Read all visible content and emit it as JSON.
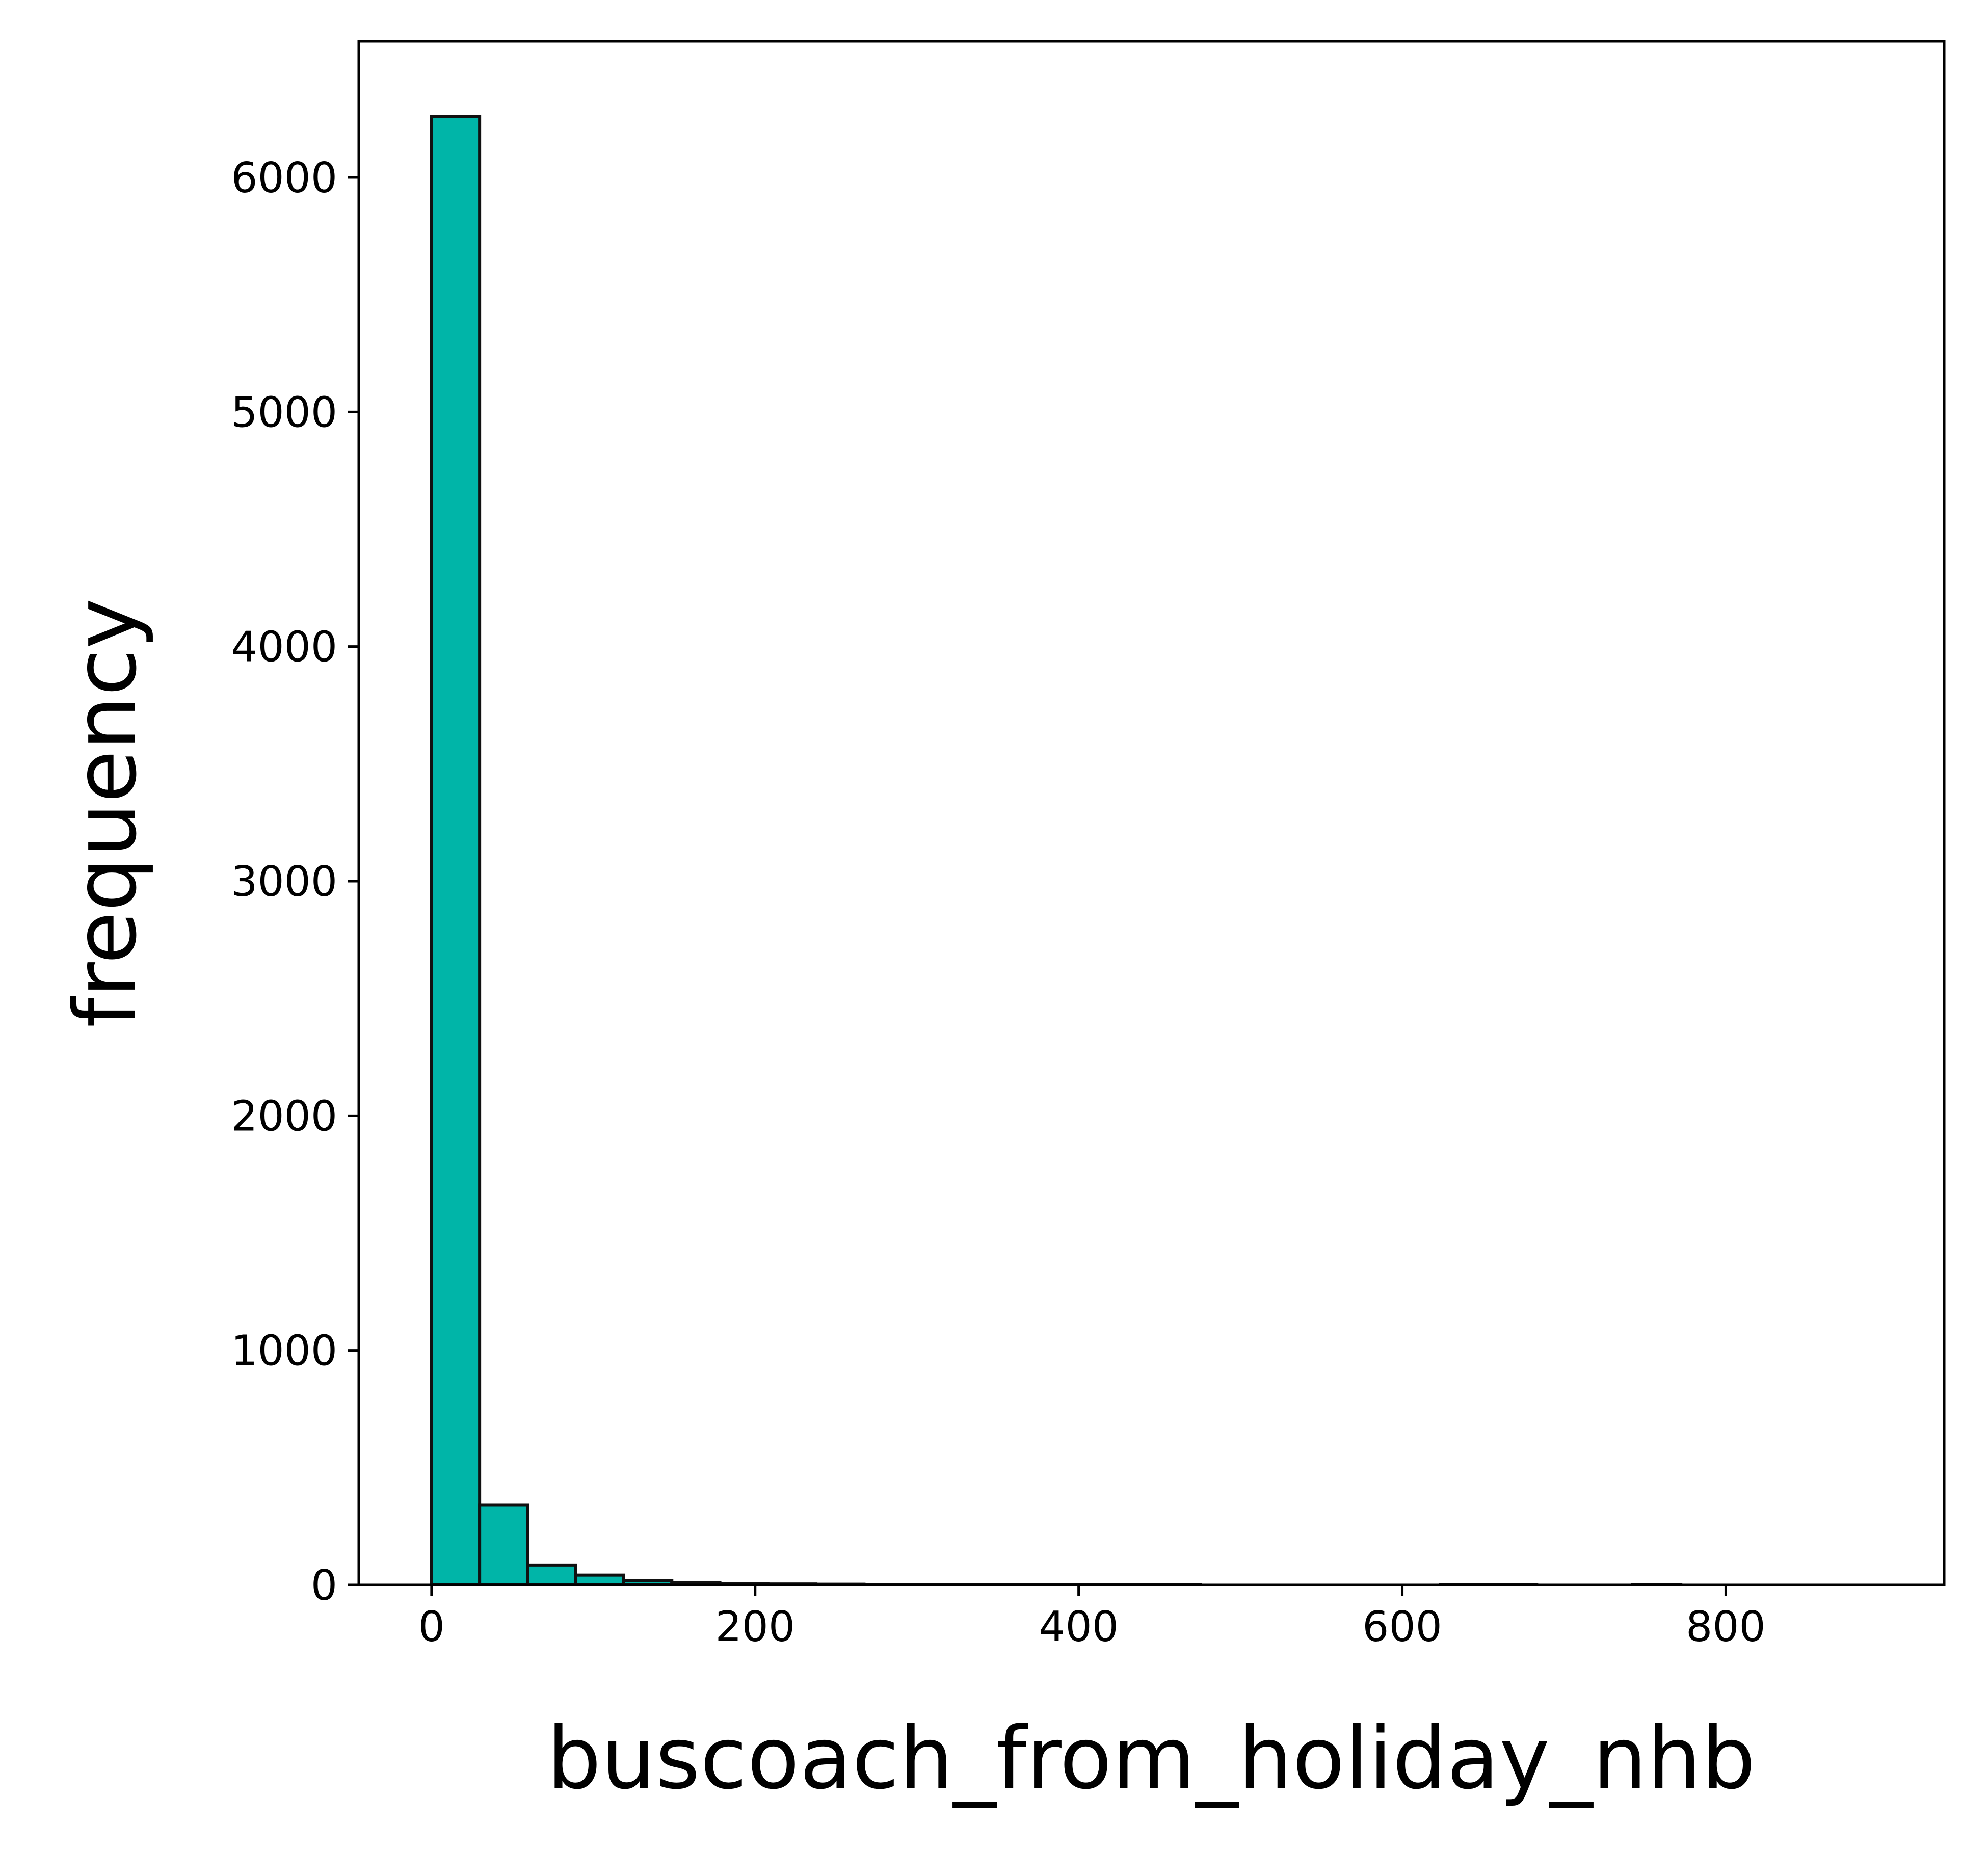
{
  "chart_data": {
    "type": "bar",
    "subtype": "histogram",
    "xlabel": "buscoach_from_holiday_nhb",
    "ylabel": "frequency",
    "xlim": [
      -45,
      935
    ],
    "ylim": [
      0,
      6580
    ],
    "x_ticks": [
      0,
      200,
      400,
      600,
      800
    ],
    "y_ticks": [
      0,
      1000,
      2000,
      3000,
      4000,
      5000,
      6000
    ],
    "bin_width": 29.7,
    "bin_start": 0,
    "values": [
      6260,
      340,
      85,
      42,
      18,
      9,
      6,
      4,
      3,
      2,
      2,
      1,
      1,
      1,
      1,
      1,
      0,
      0,
      0,
      0,
      0,
      1,
      1,
      0,
      0,
      1,
      0,
      0,
      0,
      0
    ],
    "colors": {
      "bar_fill": "#00B5A8",
      "bar_edge": "#111111",
      "axis": "#000000"
    },
    "grid": false,
    "legend": "none"
  }
}
